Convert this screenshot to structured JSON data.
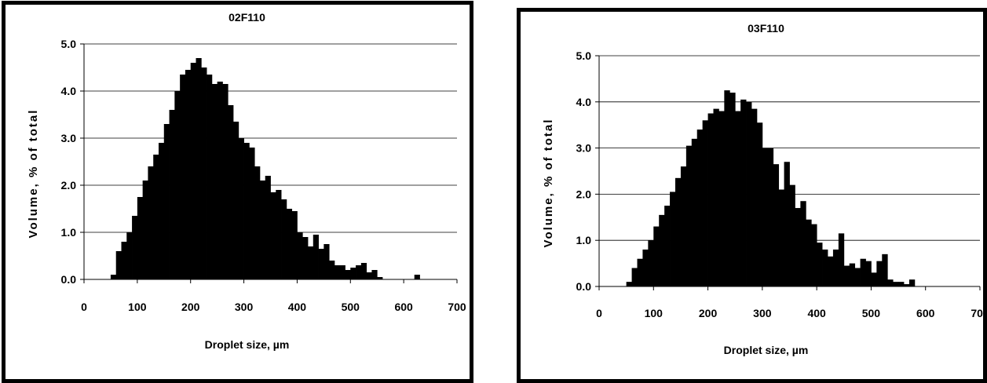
{
  "chart_data": [
    {
      "type": "bar",
      "title": "02F110",
      "xlabel": "Droplet size, µm",
      "ylabel": "Volume, % of total",
      "xlim": [
        0,
        700
      ],
      "ylim": [
        0,
        5.0
      ],
      "xticks": [
        "0",
        "100",
        "200",
        "300",
        "400",
        "500",
        "600",
        "700"
      ],
      "yticks": [
        "0.0",
        "1.0",
        "2.0",
        "3.0",
        "4.0",
        "5.0"
      ],
      "grid": "horizontal",
      "bin_width": 10,
      "x": [
        50,
        60,
        70,
        80,
        90,
        100,
        110,
        120,
        130,
        140,
        150,
        160,
        170,
        180,
        190,
        200,
        210,
        220,
        230,
        240,
        250,
        260,
        270,
        280,
        290,
        300,
        310,
        320,
        330,
        340,
        350,
        360,
        370,
        380,
        390,
        400,
        410,
        420,
        430,
        440,
        450,
        460,
        470,
        480,
        490,
        500,
        510,
        520,
        530,
        540,
        550,
        560,
        570,
        580,
        590,
        600,
        610,
        620,
        630,
        640,
        650,
        660,
        670,
        680,
        690
      ],
      "values": [
        0.1,
        0.6,
        0.8,
        1.0,
        1.35,
        1.75,
        2.1,
        2.4,
        2.65,
        2.9,
        3.3,
        3.6,
        4.0,
        4.35,
        4.45,
        4.6,
        4.7,
        4.5,
        4.35,
        4.15,
        4.2,
        4.15,
        3.7,
        3.35,
        3.0,
        2.9,
        2.8,
        2.4,
        2.1,
        2.2,
        1.85,
        1.9,
        1.7,
        1.5,
        1.45,
        1.0,
        0.9,
        0.7,
        0.95,
        0.65,
        0.75,
        0.4,
        0.3,
        0.3,
        0.2,
        0.25,
        0.3,
        0.35,
        0.15,
        0.2,
        0.05,
        0,
        0,
        0,
        0,
        0,
        0,
        0.1,
        0,
        0,
        0,
        0,
        0,
        0,
        0
      ]
    },
    {
      "type": "bar",
      "title": "03F110",
      "xlabel": "Droplet size, µm",
      "ylabel": "Volume, % of total",
      "xlim": [
        0,
        700
      ],
      "ylim": [
        0,
        5.0
      ],
      "xticks": [
        "0",
        "100",
        "200",
        "300",
        "400",
        "500",
        "600",
        "700"
      ],
      "yticks": [
        "0.0",
        "1.0",
        "2.0",
        "3.0",
        "4.0",
        "5.0"
      ],
      "grid": "horizontal",
      "bin_width": 10,
      "x": [
        50,
        60,
        70,
        80,
        90,
        100,
        110,
        120,
        130,
        140,
        150,
        160,
        170,
        180,
        190,
        200,
        210,
        220,
        230,
        240,
        250,
        260,
        270,
        280,
        290,
        300,
        310,
        320,
        330,
        340,
        350,
        360,
        370,
        380,
        390,
        400,
        410,
        420,
        430,
        440,
        450,
        460,
        470,
        480,
        490,
        500,
        510,
        520,
        530,
        540,
        550,
        560,
        570,
        580,
        590,
        600,
        610,
        620,
        630,
        640,
        650,
        660,
        670,
        680,
        690
      ],
      "values": [
        0.1,
        0.4,
        0.6,
        0.8,
        1.0,
        1.3,
        1.55,
        1.75,
        2.05,
        2.35,
        2.6,
        3.05,
        3.2,
        3.4,
        3.6,
        3.75,
        3.85,
        3.8,
        4.25,
        4.2,
        3.8,
        4.05,
        4.0,
        3.85,
        3.55,
        3.0,
        3.0,
        2.65,
        2.1,
        2.7,
        2.2,
        1.7,
        1.85,
        1.45,
        1.35,
        0.95,
        0.8,
        0.65,
        0.8,
        1.15,
        0.45,
        0.5,
        0.4,
        0.6,
        0.55,
        0.3,
        0.55,
        0.7,
        0.15,
        0.1,
        0.1,
        0.05,
        0.15,
        0,
        0,
        0,
        0,
        0,
        0,
        0,
        0,
        0,
        0,
        0,
        0
      ]
    }
  ]
}
